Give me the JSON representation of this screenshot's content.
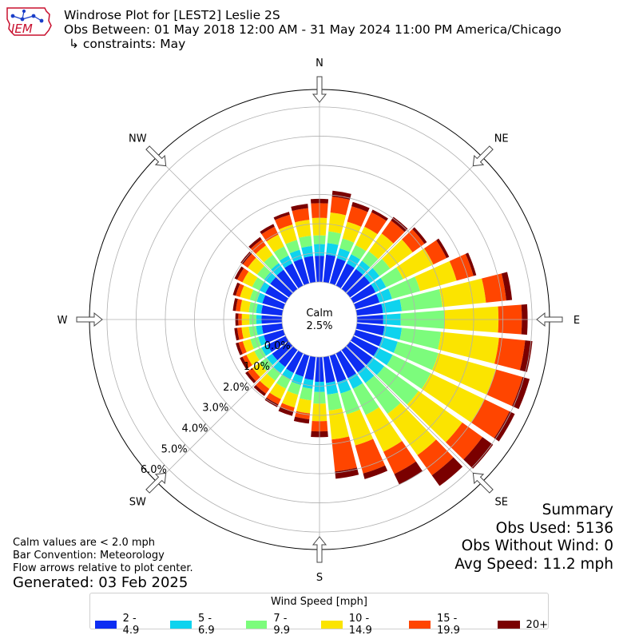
{
  "title": {
    "line1": "Windrose Plot for [LEST2] Leslie 2S",
    "line2": "Obs Between: 01 May 2018 12:00 AM - 31 May 2024 11:00 PM America/Chicago",
    "line3": "↳ constraints: May"
  },
  "logo": {
    "text": "IEM",
    "color": "#c8102e"
  },
  "summary": {
    "heading": "Summary",
    "obs_used": "Obs Used: 5136",
    "obs_without_wind": "Obs Without Wind: 0",
    "avg_speed": "Avg Speed: 11.2 mph"
  },
  "notes": {
    "calm_note": "Calm values are < 2.0 mph",
    "bar_convention": "Bar Convention: Meteorology",
    "flow_arrows": "Flow arrows relative to plot center."
  },
  "generated": "Generated: 03 Feb 2025",
  "chart_data": {
    "type": "windrose",
    "units": "%",
    "calm_label": "Calm",
    "calm_value": "2.5%",
    "radial_ticks": [
      0,
      1,
      2,
      3,
      4,
      5,
      6
    ],
    "radial_tick_labels": [
      "0.0%",
      "1.0%",
      "2.0%",
      "3.0%",
      "4.0%",
      "5.0%",
      "6.0%"
    ],
    "radial_max": 6.6,
    "compass_labels": [
      "N",
      "NE",
      "E",
      "SE",
      "S",
      "SW",
      "W",
      "NW"
    ],
    "legend_title": "Wind Speed [mph]",
    "bins": [
      {
        "label": "2 - 4.9",
        "color": "#0d2df2"
      },
      {
        "label": "5 - 6.9",
        "color": "#0ed3ee"
      },
      {
        "label": "7 - 9.9",
        "color": "#7cfc7c"
      },
      {
        "label": "10 - 14.9",
        "color": "#fbe400"
      },
      {
        "label": "15 - 19.9",
        "color": "#ff4500"
      },
      {
        "label": "20+",
        "color": "#7a0000"
      }
    ],
    "directions": [
      0,
      10,
      20,
      30,
      40,
      50,
      60,
      70,
      80,
      90,
      100,
      110,
      120,
      130,
      140,
      150,
      160,
      170,
      180,
      190,
      200,
      210,
      220,
      230,
      240,
      250,
      260,
      270,
      280,
      290,
      300,
      310,
      320,
      330,
      340,
      350
    ],
    "cumulative": [
      [
        0.9,
        1.3,
        1.6,
        2.2,
        2.7,
        2.85
      ],
      [
        0.95,
        1.35,
        1.75,
        2.4,
        2.95,
        3.15
      ],
      [
        0.9,
        1.25,
        1.6,
        2.2,
        2.75,
        2.9
      ],
      [
        0.85,
        1.2,
        1.55,
        2.25,
        2.8,
        2.9
      ],
      [
        0.85,
        1.2,
        1.6,
        2.35,
        2.9,
        3.05
      ],
      [
        0.85,
        1.25,
        1.7,
        2.65,
        3.15,
        3.25
      ],
      [
        0.85,
        1.25,
        1.9,
        3.05,
        3.55,
        3.65
      ],
      [
        0.85,
        1.3,
        2.3,
        3.6,
        4.2,
        4.3
      ],
      [
        0.9,
        1.55,
        2.95,
        4.45,
        5.15,
        5.35
      ],
      [
        0.9,
        1.5,
        3.0,
        4.85,
        5.65,
        5.85
      ],
      [
        0.95,
        1.55,
        2.9,
        4.9,
        5.8,
        6.05
      ],
      [
        0.95,
        1.5,
        2.95,
        5.0,
        5.95,
        6.2
      ],
      [
        0.95,
        1.5,
        2.95,
        5.0,
        5.95,
        6.15
      ],
      [
        0.95,
        1.45,
        2.9,
        4.75,
        5.6,
        6.05
      ],
      [
        0.95,
        1.4,
        2.7,
        4.45,
        5.3,
        5.75
      ],
      [
        0.95,
        1.35,
        2.35,
        3.75,
        4.6,
        5.0
      ],
      [
        0.95,
        1.35,
        2.1,
        3.2,
        4.2,
        4.4
      ],
      [
        0.9,
        1.3,
        1.85,
        2.85,
        3.95,
        4.2
      ],
      [
        0.85,
        1.2,
        1.6,
        2.2,
        2.55,
        2.75
      ],
      [
        0.8,
        1.1,
        1.5,
        1.95,
        2.15,
        2.3
      ],
      [
        0.75,
        1.05,
        1.4,
        1.85,
        2.0,
        2.15
      ],
      [
        0.75,
        1.0,
        1.35,
        1.75,
        1.95,
        2.05
      ],
      [
        0.72,
        0.98,
        1.3,
        1.65,
        1.85,
        1.95
      ],
      [
        0.72,
        0.95,
        1.25,
        1.55,
        1.75,
        1.85
      ],
      [
        0.7,
        0.93,
        1.2,
        1.5,
        1.65,
        1.75
      ],
      [
        0.7,
        0.9,
        1.18,
        1.45,
        1.6,
        1.7
      ],
      [
        0.7,
        0.9,
        1.15,
        1.4,
        1.55,
        1.65
      ],
      [
        0.7,
        0.88,
        1.12,
        1.38,
        1.5,
        1.6
      ],
      [
        0.72,
        0.9,
        1.15,
        1.45,
        1.6,
        1.7
      ],
      [
        0.75,
        0.95,
        1.2,
        1.55,
        1.7,
        1.8
      ],
      [
        0.78,
        1.0,
        1.28,
        1.65,
        1.85,
        1.95
      ],
      [
        0.8,
        1.05,
        1.35,
        1.75,
        1.95,
        2.05
      ],
      [
        0.82,
        1.1,
        1.45,
        1.85,
        2.1,
        2.2
      ],
      [
        0.85,
        1.15,
        1.5,
        1.95,
        2.25,
        2.35
      ],
      [
        0.88,
        1.2,
        1.55,
        2.1,
        2.45,
        2.55
      ],
      [
        0.9,
        1.25,
        1.6,
        2.15,
        2.55,
        2.7
      ]
    ]
  }
}
